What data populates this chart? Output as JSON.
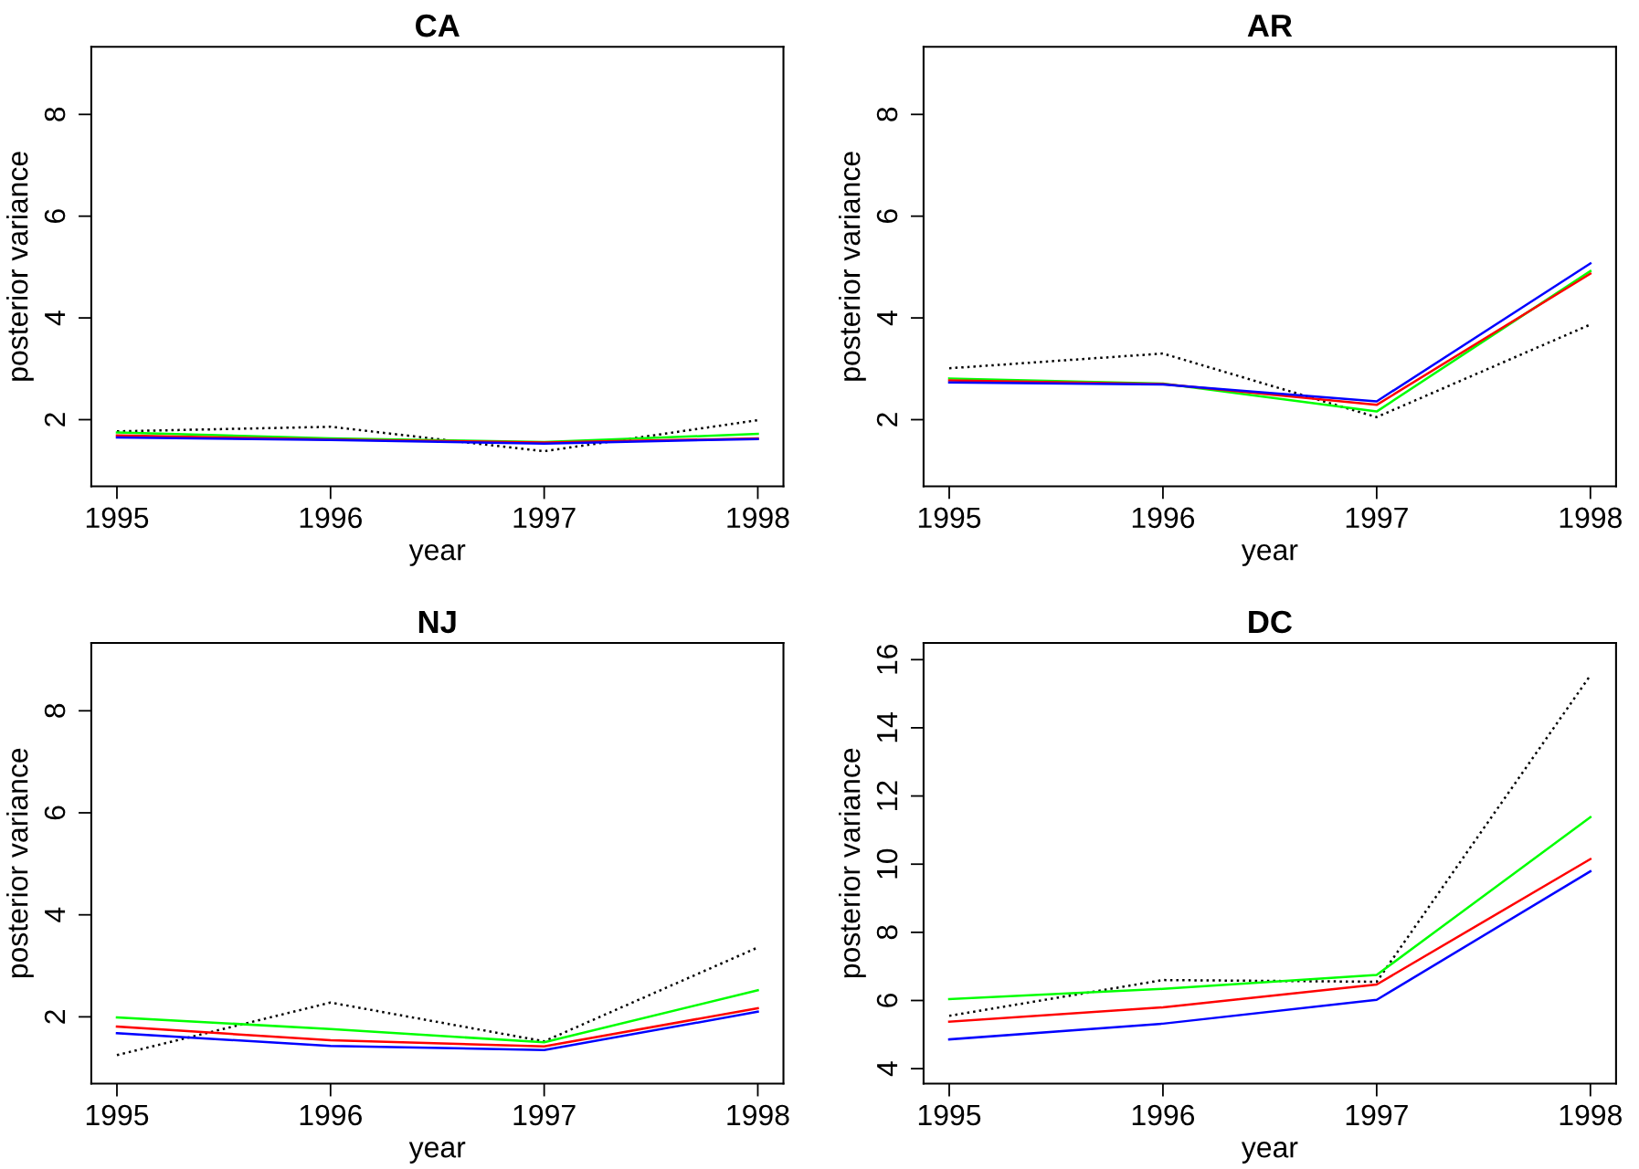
{
  "chart_data": [
    {
      "type": "line",
      "title": "CA",
      "xlabel": "year",
      "ylabel": "posterior variance",
      "x": [
        1995,
        1996,
        1997,
        1998
      ],
      "xlim": [
        1994.88,
        1998.12
      ],
      "xticks": [
        1995,
        1996,
        1997,
        1998
      ],
      "ylim": [
        0.69,
        9.33
      ],
      "yticks": [
        2,
        4,
        6,
        8
      ],
      "grid": false,
      "series": [
        {
          "color": "#000000",
          "line_style": "dotted",
          "values": [
            1.77,
            1.86,
            1.38,
            1.99
          ]
        },
        {
          "color": "#00ff00",
          "line_style": "solid",
          "values": [
            1.75,
            1.63,
            1.56,
            1.72
          ]
        },
        {
          "color": "#ff0000",
          "line_style": "solid",
          "values": [
            1.69,
            1.61,
            1.55,
            1.63
          ]
        },
        {
          "color": "#0000ff",
          "line_style": "solid",
          "values": [
            1.65,
            1.6,
            1.53,
            1.62
          ]
        }
      ]
    },
    {
      "type": "line",
      "title": "AR",
      "xlabel": "year",
      "ylabel": "posterior variance",
      "x": [
        1995,
        1996,
        1997,
        1998
      ],
      "xlim": [
        1994.88,
        1998.12
      ],
      "xticks": [
        1995,
        1996,
        1997,
        1998
      ],
      "ylim": [
        0.69,
        9.33
      ],
      "yticks": [
        2,
        4,
        6,
        8
      ],
      "grid": false,
      "series": [
        {
          "color": "#000000",
          "line_style": "dotted",
          "values": [
            3.01,
            3.3,
            2.05,
            3.87
          ]
        },
        {
          "color": "#00ff00",
          "line_style": "solid",
          "values": [
            2.81,
            2.71,
            2.16,
            4.92
          ]
        },
        {
          "color": "#ff0000",
          "line_style": "solid",
          "values": [
            2.77,
            2.7,
            2.29,
            4.87
          ]
        },
        {
          "color": "#0000ff",
          "line_style": "solid",
          "values": [
            2.73,
            2.69,
            2.36,
            5.07
          ]
        }
      ]
    },
    {
      "type": "line",
      "title": "NJ",
      "xlabel": "year",
      "ylabel": "posterior variance",
      "x": [
        1995,
        1996,
        1997,
        1998
      ],
      "xlim": [
        1994.88,
        1998.12
      ],
      "xticks": [
        1995,
        1996,
        1997,
        1998
      ],
      "ylim": [
        0.69,
        9.33
      ],
      "yticks": [
        2,
        4,
        6,
        8
      ],
      "grid": false,
      "series": [
        {
          "color": "#000000",
          "line_style": "dotted",
          "values": [
            1.25,
            2.28,
            1.52,
            3.36
          ]
        },
        {
          "color": "#00ff00",
          "line_style": "solid",
          "values": [
            1.99,
            1.76,
            1.5,
            2.52
          ]
        },
        {
          "color": "#ff0000",
          "line_style": "solid",
          "values": [
            1.81,
            1.54,
            1.42,
            2.17
          ]
        },
        {
          "color": "#0000ff",
          "line_style": "solid",
          "values": [
            1.68,
            1.43,
            1.35,
            2.1
          ]
        }
      ]
    },
    {
      "type": "line",
      "title": "DC",
      "xlabel": "year",
      "ylabel": "posterior variance",
      "x": [
        1995,
        1996,
        1997,
        1998
      ],
      "xlim": [
        1994.88,
        1998.12
      ],
      "xticks": [
        1995,
        1996,
        1997,
        1998
      ],
      "ylim": [
        3.56,
        16.49
      ],
      "yticks": [
        4,
        6,
        8,
        10,
        12,
        14,
        16
      ],
      "grid": false,
      "series": [
        {
          "color": "#000000",
          "line_style": "dotted",
          "values": [
            5.55,
            6.6,
            6.55,
            15.54
          ]
        },
        {
          "color": "#00ff00",
          "line_style": "solid",
          "values": [
            6.04,
            6.34,
            6.75,
            11.38
          ]
        },
        {
          "color": "#ff0000",
          "line_style": "solid",
          "values": [
            5.38,
            5.8,
            6.47,
            10.15
          ]
        },
        {
          "color": "#0000ff",
          "line_style": "solid",
          "values": [
            4.86,
            5.32,
            6.02,
            9.79
          ]
        }
      ]
    }
  ]
}
